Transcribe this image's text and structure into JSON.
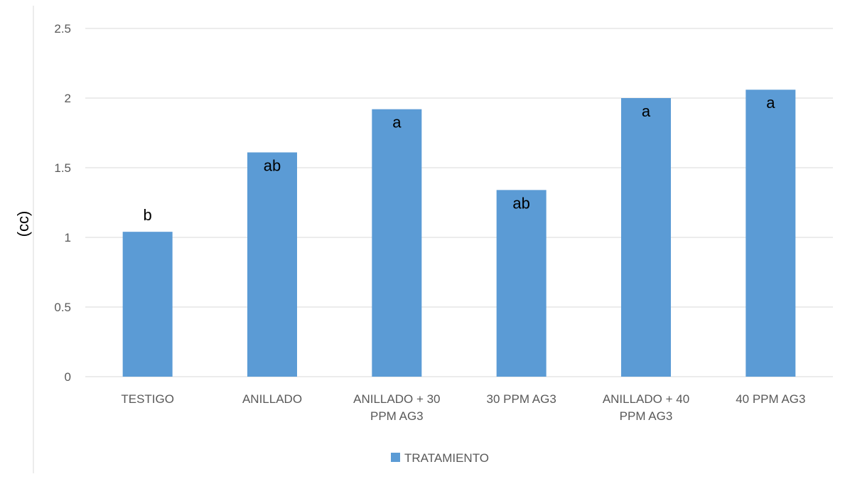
{
  "chart_data": {
    "type": "bar",
    "categories": [
      "TESTIGO",
      "ANILLADO",
      "ANILLADO + 30 PPM AG3",
      "30 PPM AG3",
      "ANILLADO + 40 PPM AG3",
      "40 PPM AG3"
    ],
    "category_lines": [
      [
        "TESTIGO"
      ],
      [
        "ANILLADO"
      ],
      [
        "ANILLADO + 30",
        "PPM AG3"
      ],
      [
        "30 PPM AG3"
      ],
      [
        "ANILLADO + 40",
        "PPM AG3"
      ],
      [
        "40 PPM AG3"
      ]
    ],
    "series": [
      {
        "name": "TRATAMIENTO",
        "values": [
          1.04,
          1.61,
          1.92,
          1.34,
          2.0,
          2.06
        ],
        "labels": [
          "b",
          "ab",
          "a",
          "ab",
          "a",
          "a"
        ],
        "color": "#5b9bd5"
      }
    ],
    "title": "",
    "xlabel": "",
    "ylabel": "(cc)",
    "ylim": [
      0,
      2.5
    ],
    "yticks": [
      0,
      0.5,
      1,
      1.5,
      2,
      2.5
    ],
    "ytick_labels": [
      "0",
      "0.5",
      "1",
      "1.5",
      "2",
      "2.5"
    ],
    "grid": true,
    "legend_position": "bottom"
  },
  "colors": {
    "bar": "#5b9bd5",
    "grid": "#d9d9d9",
    "axis_text": "#595959"
  }
}
